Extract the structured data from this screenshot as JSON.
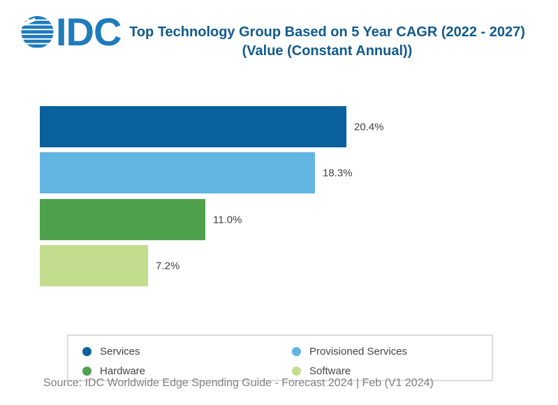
{
  "header": {
    "logo_text": "IDC",
    "title_line1": "Top Technology Group Based on 5 Year CAGR (2022 - 2027)",
    "title_line2": "(Value (Constant Annual))"
  },
  "chart_data": {
    "type": "bar",
    "orientation": "horizontal",
    "title": "Top Technology Group Based on 5 Year CAGR (2022 - 2027) (Value (Constant Annual))",
    "categories": [
      "Services",
      "Provisioned Services",
      "Hardware",
      "Software"
    ],
    "values": [
      20.4,
      18.3,
      11.0,
      7.2
    ],
    "value_labels": [
      "20.4%",
      "18.3%",
      "11.0%",
      "7.2%"
    ],
    "bar_colors": [
      "#0b609e",
      "#62b5e0",
      "#4fa14d",
      "#c3dd8f"
    ],
    "xlabel": "",
    "ylabel": "",
    "xlim": [
      0,
      21
    ],
    "grid": false,
    "legend_position": "bottom"
  },
  "legend": {
    "items": [
      {
        "label": "Services",
        "color": "#0b609e"
      },
      {
        "label": "Provisioned Services",
        "color": "#62b5e0"
      },
      {
        "label": "Hardware",
        "color": "#4fa14d"
      },
      {
        "label": "Software",
        "color": "#c3dd8f"
      }
    ]
  },
  "footer": {
    "source": "Source: IDC Worldwide Edge Spending Guide - Forecast 2024 | Feb (V1 2024)"
  },
  "colors": {
    "logo_blue": "#1e7bbd",
    "title_blue": "#105a8c",
    "legend_border": "#dcdcdc",
    "source_gray": "#808080"
  }
}
